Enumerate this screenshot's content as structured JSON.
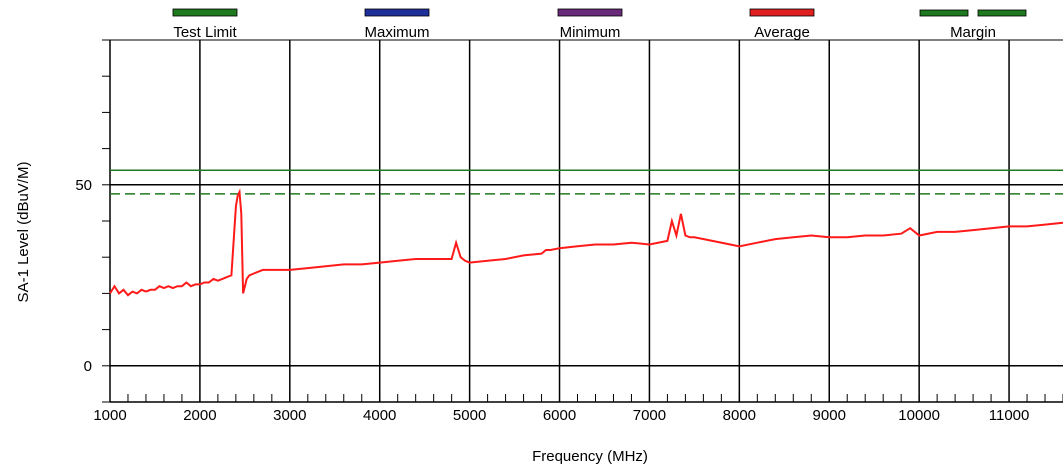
{
  "chart_data": {
    "type": "line",
    "title": "",
    "xlabel": "Frequency (MHz)",
    "ylabel": "SA-1 Level (dBuV/M)",
    "xlim": [
      1000,
      11600
    ],
    "ylim": [
      -10,
      90
    ],
    "x_ticks": [
      1000,
      2000,
      3000,
      4000,
      5000,
      6000,
      7000,
      8000,
      9000,
      10000,
      11000
    ],
    "x_tick_labels": [
      "1000",
      "2000",
      "3000",
      "4000",
      "5000",
      "6000",
      "7000",
      "8000",
      "9000",
      "10000",
      "11000"
    ],
    "y_tick_labels": [
      {
        "value": 0,
        "label": "0"
      },
      {
        "value": 50,
        "label": "50"
      }
    ],
    "grid": true,
    "legend_position": "top",
    "legend": [
      {
        "label": "Test Limit",
        "color": "#1f7a1f",
        "style": "solid"
      },
      {
        "label": "Maximum",
        "color": "#1f2f9a",
        "style": "solid"
      },
      {
        "label": "Minimum",
        "color": "#6a2a7a",
        "style": "solid"
      },
      {
        "label": "Average",
        "color": "#e02020",
        "style": "solid"
      },
      {
        "label": "Margin",
        "color": "#1f7a1f",
        "style": "dashed"
      }
    ],
    "series": [
      {
        "name": "Test Limit",
        "color": "#1f7a1f",
        "dashed": false,
        "x": [
          1000,
          11600
        ],
        "y": [
          54,
          54
        ]
      },
      {
        "name": "Margin",
        "color": "#1f7a1f",
        "dashed": true,
        "x": [
          1000,
          11600
        ],
        "y": [
          47.5,
          47.5
        ]
      },
      {
        "name": "Average",
        "color": "#ff1a1a",
        "dashed": false,
        "x": [
          1000,
          1050,
          1100,
          1150,
          1200,
          1250,
          1300,
          1350,
          1400,
          1450,
          1500,
          1550,
          1600,
          1650,
          1700,
          1750,
          1800,
          1850,
          1900,
          1950,
          2000,
          2050,
          2100,
          2150,
          2200,
          2250,
          2300,
          2350,
          2400,
          2420,
          2440,
          2460,
          2480,
          2500,
          2520,
          2550,
          2600,
          2650,
          2700,
          2800,
          2900,
          3000,
          3200,
          3400,
          3600,
          3800,
          4000,
          4200,
          4400,
          4600,
          4800,
          4850,
          4900,
          4950,
          5000,
          5200,
          5400,
          5600,
          5800,
          5850,
          5900,
          6000,
          6200,
          6400,
          6600,
          6800,
          7000,
          7200,
          7250,
          7300,
          7350,
          7400,
          7450,
          7500,
          7700,
          7900,
          8000,
          8200,
          8400,
          8600,
          8800,
          9000,
          9200,
          9400,
          9600,
          9800,
          9900,
          10000,
          10200,
          10400,
          10600,
          10800,
          11000,
          11200,
          11400,
          11600
        ],
        "y": [
          20,
          22,
          20,
          21,
          19.5,
          20.5,
          20,
          21,
          20.5,
          21,
          21,
          22,
          21.5,
          22,
          21.5,
          22,
          22,
          23,
          22,
          22.5,
          22.5,
          23,
          23,
          24,
          23.5,
          24,
          24.5,
          25,
          44,
          47,
          48,
          42,
          20,
          22,
          24,
          25,
          25.5,
          26,
          26.5,
          26.5,
          26.5,
          26.5,
          27,
          27.5,
          28,
          28,
          28.5,
          29,
          29.5,
          29.5,
          29.5,
          34,
          30,
          29,
          28.5,
          29,
          29.5,
          30.5,
          31,
          32,
          32,
          32.5,
          33,
          33.5,
          33.5,
          34,
          33.5,
          34.5,
          40,
          36,
          42,
          36,
          35.5,
          35.5,
          34.5,
          33.5,
          33,
          34,
          35,
          35.5,
          36,
          35.5,
          35.5,
          36,
          36,
          36.5,
          38,
          36,
          37,
          37,
          37.5,
          38,
          38.5,
          38.5,
          39,
          39.5
        ]
      }
    ]
  }
}
